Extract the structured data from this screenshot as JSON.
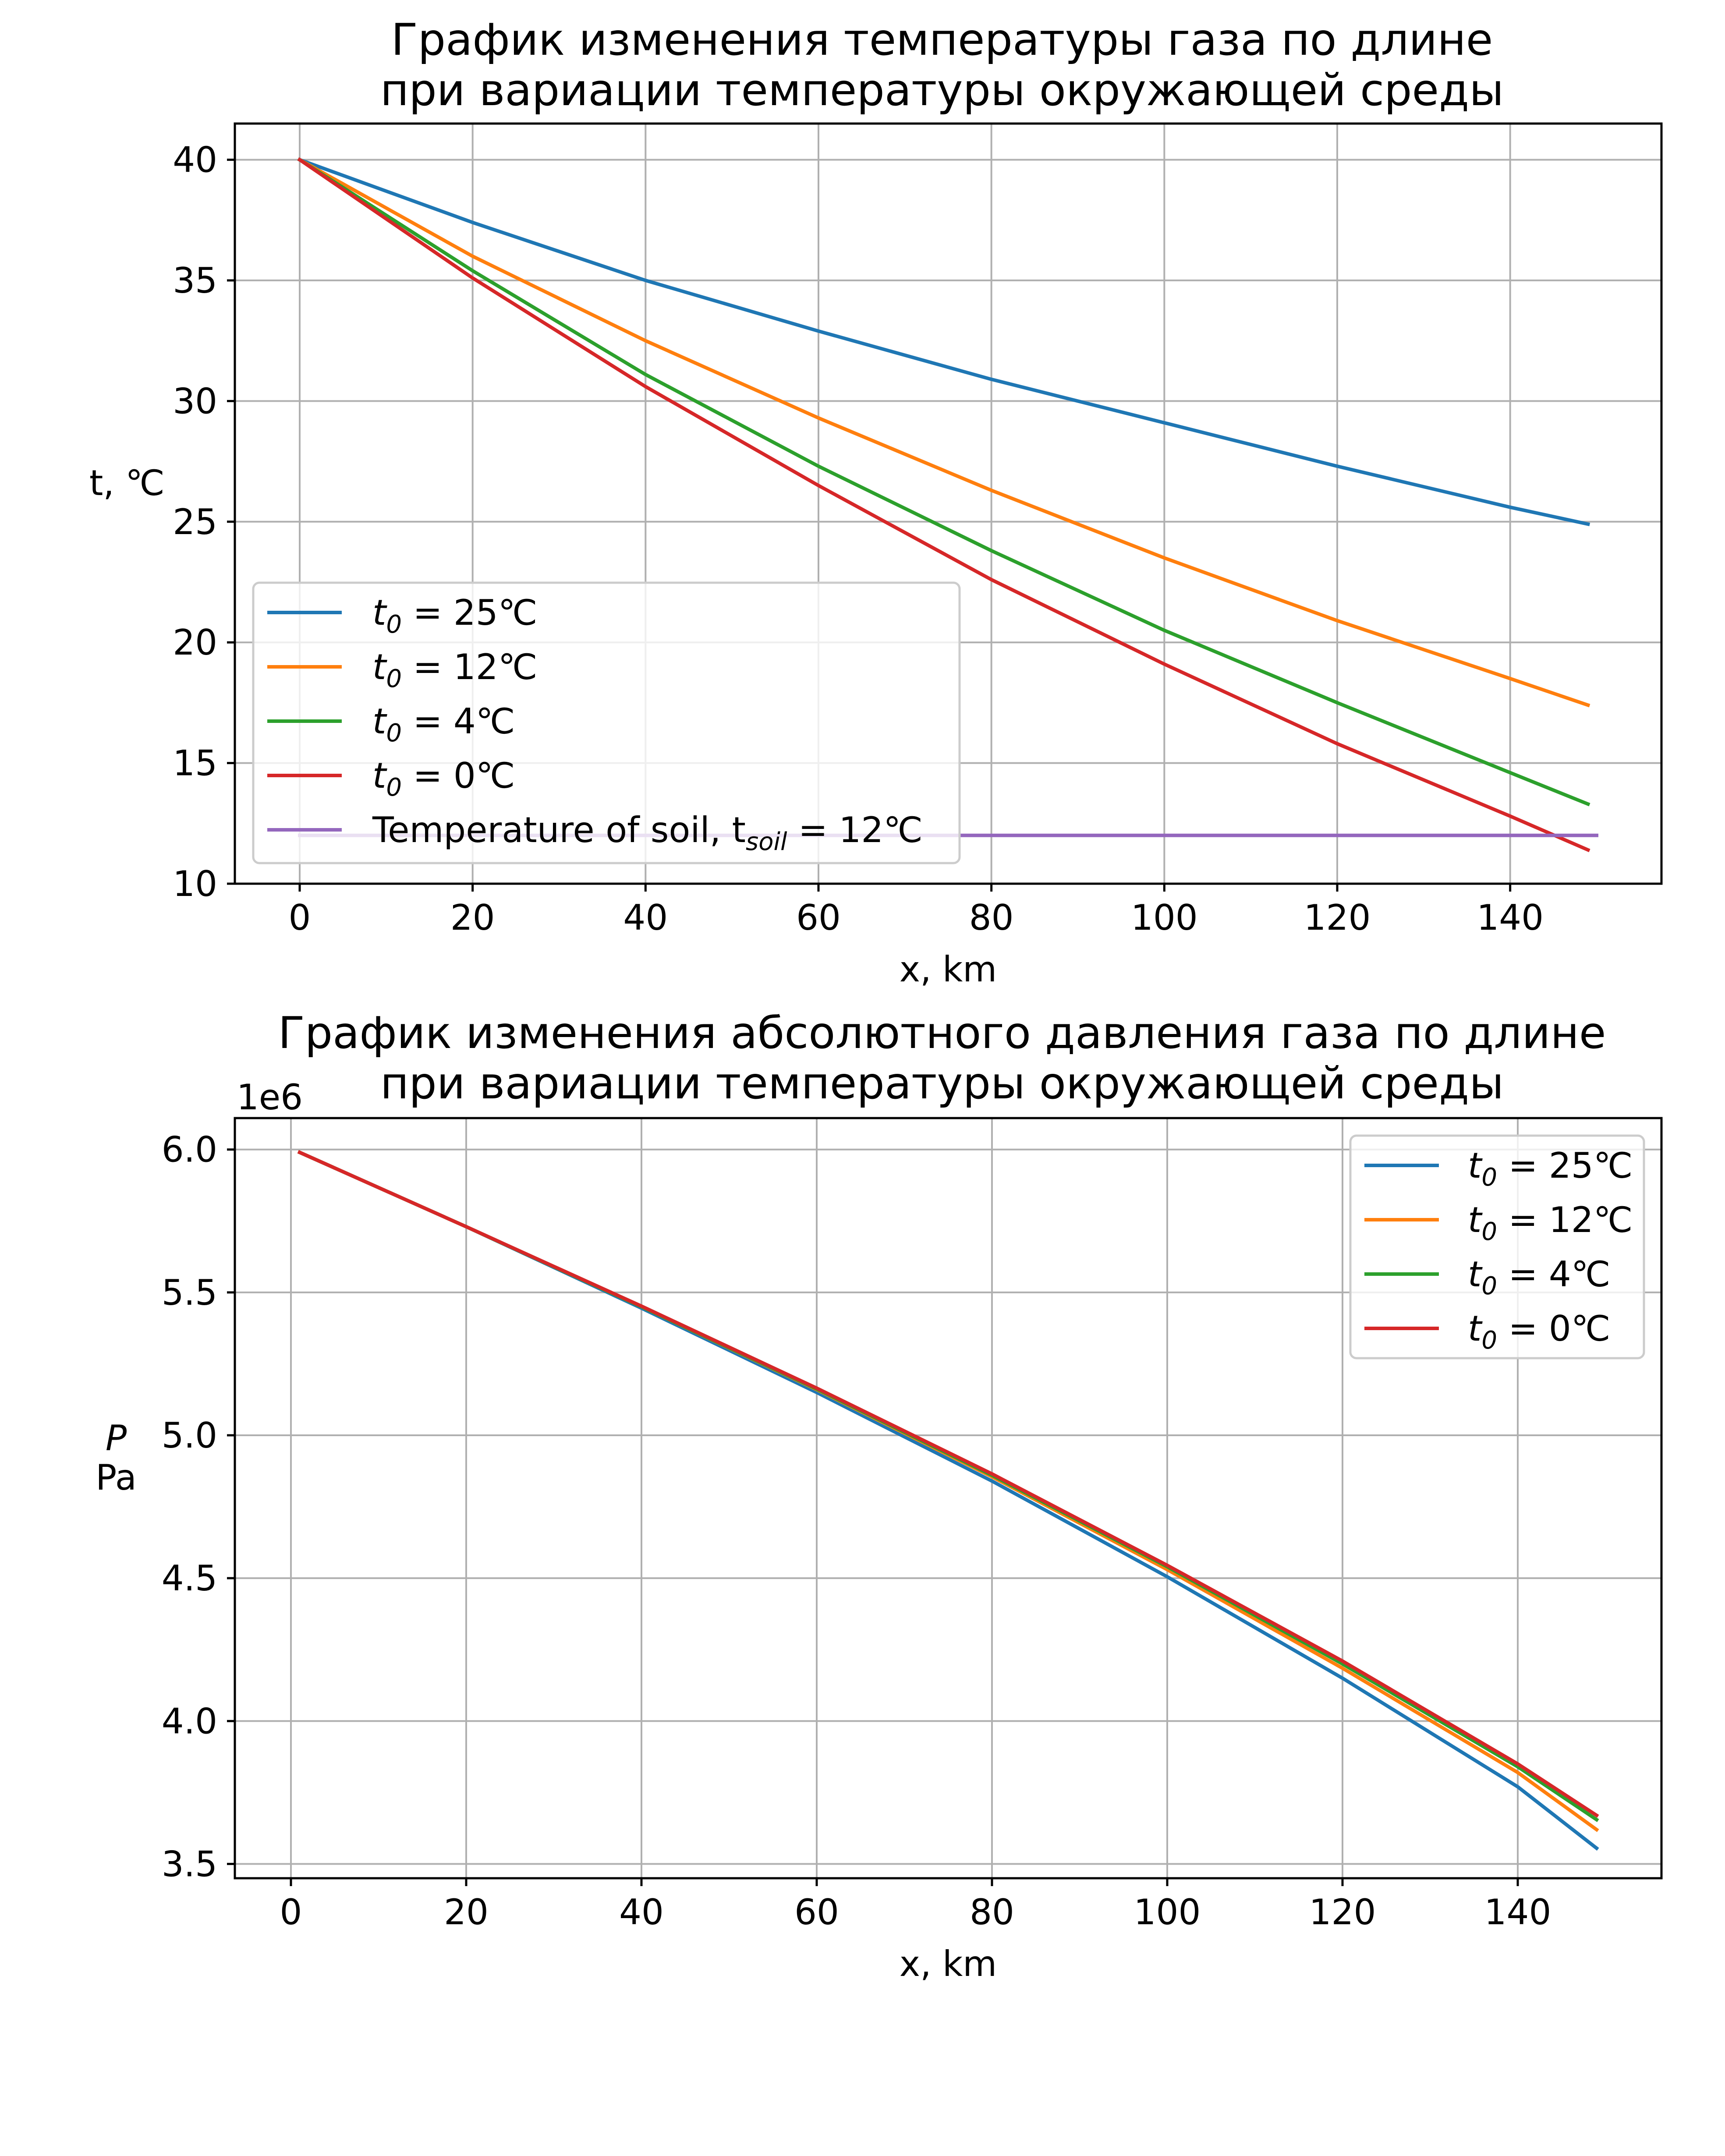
{
  "colors": {
    "blue": "#1f77b4",
    "orange": "#ff7f0e",
    "green": "#2ca02c",
    "red": "#d62728",
    "purple": "#9467bd",
    "grid": "#b0b0b0"
  },
  "chart_data": [
    {
      "type": "line",
      "title_lines": [
        "График изменения температуры газа по длине",
        "при вариации температуры окружающей среды"
      ],
      "xlabel": "x, km",
      "ylabel": "t, ℃",
      "xlim": [
        -7.5,
        157.5
      ],
      "ylim": [
        10,
        41.5
      ],
      "xticks": [
        0,
        20,
        40,
        60,
        80,
        100,
        120,
        140
      ],
      "yticks": [
        10,
        15,
        20,
        25,
        30,
        35,
        40
      ],
      "ytick_labels": [
        "10",
        "15",
        "20",
        "25",
        "30",
        "35",
        "40"
      ],
      "grid": true,
      "legend_location": "lower-left",
      "series": [
        {
          "name": "t_0 = 25℃",
          "base": "t",
          "sub": "0",
          "rest": " = 25℃",
          "color": "#1f77b4",
          "x": [
            0,
            20,
            40,
            60,
            80,
            100,
            120,
            140,
            149
          ],
          "y": [
            40,
            37.4,
            35.0,
            32.9,
            30.9,
            29.1,
            27.3,
            25.6,
            24.9
          ]
        },
        {
          "name": "t_0 = 12℃",
          "base": "t",
          "sub": "0",
          "rest": " = 12℃",
          "color": "#ff7f0e",
          "x": [
            0,
            20,
            40,
            60,
            80,
            100,
            120,
            140,
            149
          ],
          "y": [
            40,
            36.0,
            32.5,
            29.3,
            26.3,
            23.5,
            20.9,
            18.5,
            17.4
          ]
        },
        {
          "name": "t_0 = 4℃",
          "base": "t",
          "sub": "0",
          "rest": " = 4℃",
          "color": "#2ca02c",
          "x": [
            0,
            20,
            40,
            60,
            80,
            100,
            120,
            140,
            149
          ],
          "y": [
            40,
            35.4,
            31.1,
            27.3,
            23.8,
            20.5,
            17.5,
            14.6,
            13.3
          ]
        },
        {
          "name": "t_0 = 0℃",
          "base": "t",
          "sub": "0",
          "rest": " = 0℃",
          "color": "#d62728",
          "x": [
            0,
            20,
            40,
            60,
            80,
            100,
            120,
            140,
            149
          ],
          "y": [
            40,
            35.1,
            30.6,
            26.5,
            22.6,
            19.1,
            15.8,
            12.8,
            11.4
          ]
        },
        {
          "name": "Temperature of soil, t_soil = 12℃",
          "base": "Temperature of soil, t",
          "sub": "soil",
          "rest": " = 12℃",
          "color": "#9467bd",
          "x": [
            0,
            150
          ],
          "y": [
            12,
            12
          ]
        }
      ]
    },
    {
      "type": "line",
      "title_lines": [
        "График изменения абсолютного давления газа по длине",
        "при вариации температуры окружающей среды"
      ],
      "xlabel": "x, km",
      "ylabel_lines": [
        "P",
        "Pa"
      ],
      "offset_text": "1e6",
      "xlim": [
        -6.4,
        156.4
      ],
      "ylim": [
        3.45,
        6.11
      ],
      "xticks": [
        0,
        20,
        40,
        60,
        80,
        100,
        120,
        140
      ],
      "yticks": [
        3.5,
        4.0,
        4.5,
        5.0,
        5.5,
        6.0
      ],
      "ytick_labels": [
        "3.5",
        "4.0",
        "4.5",
        "5.0",
        "5.5",
        "6.0"
      ],
      "grid": true,
      "legend_location": "upper-right",
      "series": [
        {
          "name": "t_0 = 25℃",
          "base": "t",
          "sub": "0",
          "rest": " = 25℃",
          "color": "#1f77b4",
          "x": [
            1,
            20,
            40,
            60,
            80,
            100,
            120,
            140,
            149
          ],
          "y": [
            5.99,
            5.73,
            5.445,
            5.15,
            4.84,
            4.505,
            4.15,
            3.77,
            3.555
          ]
        },
        {
          "name": "t_0 = 12℃",
          "base": "t",
          "sub": "0",
          "rest": " = 12℃",
          "color": "#ff7f0e",
          "x": [
            1,
            20,
            40,
            60,
            80,
            100,
            120,
            140,
            149
          ],
          "y": [
            5.99,
            5.73,
            5.45,
            5.16,
            4.855,
            4.53,
            4.185,
            3.82,
            3.62
          ]
        },
        {
          "name": "t_0 = 4℃",
          "base": "t",
          "sub": "0",
          "rest": " = 4℃",
          "color": "#2ca02c",
          "x": [
            1,
            20,
            40,
            60,
            80,
            100,
            120,
            140,
            149
          ],
          "y": [
            5.99,
            5.73,
            5.45,
            5.162,
            4.86,
            4.54,
            4.2,
            3.84,
            3.655
          ]
        },
        {
          "name": "t_0 = 0℃",
          "base": "t",
          "sub": "0",
          "rest": " = 0℃",
          "color": "#d62728",
          "x": [
            1,
            20,
            40,
            60,
            80,
            100,
            120,
            140,
            149
          ],
          "y": [
            5.99,
            5.73,
            5.452,
            5.165,
            4.865,
            4.545,
            4.21,
            3.85,
            3.67
          ]
        }
      ]
    }
  ]
}
